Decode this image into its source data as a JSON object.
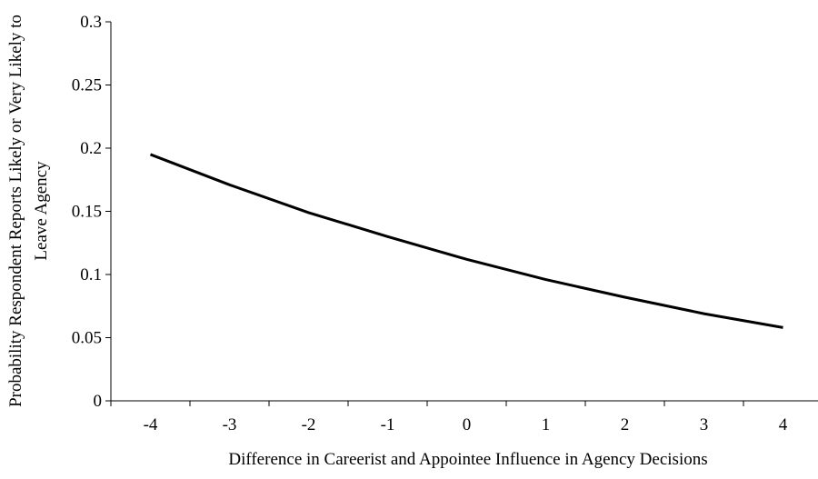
{
  "chart_data": {
    "type": "line",
    "ylabel": [
      "Probability Respondent Reports Likely or Very Likely to",
      "Leave Agency"
    ],
    "xlabel": "Difference in Careerist and Appointee Influence in Agency Decisions",
    "x": [
      -4,
      -3,
      -2,
      -1,
      0,
      1,
      2,
      3,
      4
    ],
    "series": [
      {
        "color": "#000000",
        "values": [
          0.195,
          0.171,
          0.149,
          0.13,
          0.112,
          0.096,
          0.082,
          0.069,
          0.058
        ]
      }
    ],
    "xlim": [
      -4.5,
      4.5
    ],
    "xticks": [
      -4,
      -3,
      -2,
      -1,
      0,
      1,
      2,
      3,
      4
    ],
    "ylim": [
      0,
      0.3
    ],
    "yticks": [
      0,
      0.05,
      0.1,
      0.15,
      0.2,
      0.25,
      0.3
    ],
    "grid": false
  }
}
